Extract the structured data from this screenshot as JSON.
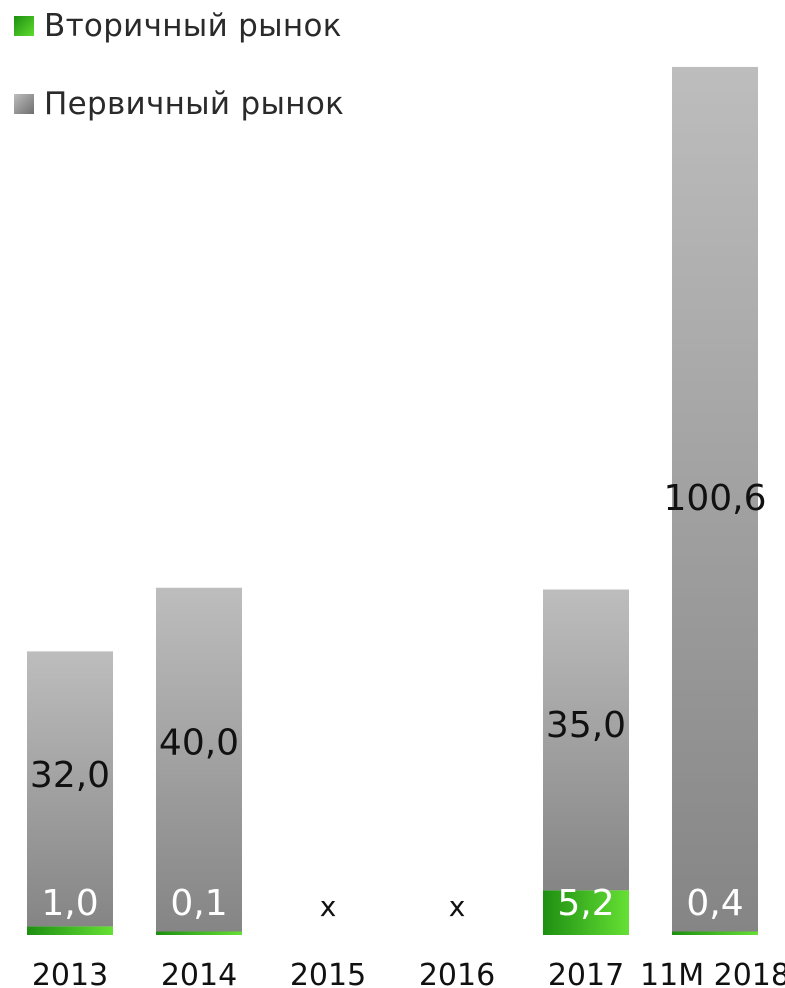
{
  "chart_data": {
    "type": "bar",
    "stacked": true,
    "categories": [
      "2013",
      "2014",
      "2015",
      "2016",
      "2017",
      "11M 2018"
    ],
    "series": [
      {
        "name": "Вторичный рынок",
        "values": [
          1.0,
          0.1,
          null,
          null,
          5.2,
          0.4
        ],
        "labels": [
          "1,0",
          "0,1",
          "",
          "",
          "5,2",
          "0,4"
        ]
      },
      {
        "name": "Первичный рынок",
        "values": [
          32.0,
          40.0,
          null,
          null,
          35.0,
          100.6
        ],
        "labels": [
          "32,0",
          "40,0",
          "",
          "",
          "35,0",
          "100,6"
        ]
      }
    ],
    "missing_labels": [
      "",
      "",
      "x",
      "x",
      "",
      ""
    ],
    "ylim": [
      0,
      106
    ],
    "grid": false,
    "legend_position": "top-left",
    "colors": {
      "secondary": "#3cb81e",
      "primary": "#9a9a9a"
    }
  }
}
